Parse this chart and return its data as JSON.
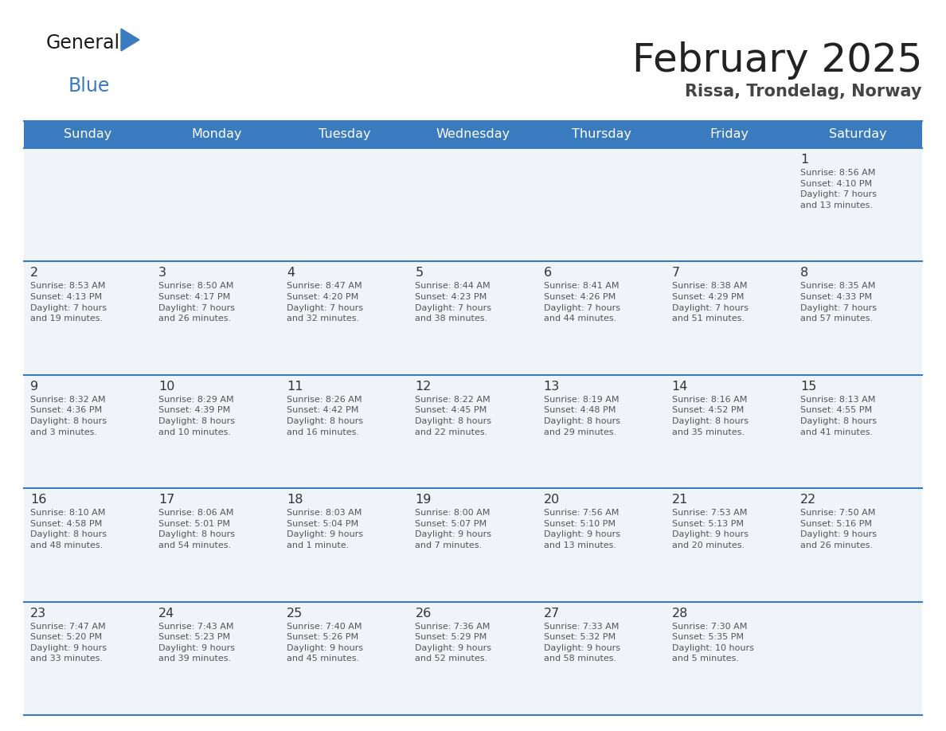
{
  "title": "February 2025",
  "subtitle": "Rissa, Trondelag, Norway",
  "header_bg_color": "#3a7bbf",
  "header_text_color": "#ffffff",
  "cell_bg_color": "#f0f4f8",
  "grid_line_color": "#3a7bbf",
  "day_number_color": "#333333",
  "info_text_color": "#555555",
  "title_color": "#222222",
  "subtitle_color": "#444444",
  "days_of_week": [
    "Sunday",
    "Monday",
    "Tuesday",
    "Wednesday",
    "Thursday",
    "Friday",
    "Saturday"
  ],
  "weeks": [
    [
      {
        "day": null,
        "info": null
      },
      {
        "day": null,
        "info": null
      },
      {
        "day": null,
        "info": null
      },
      {
        "day": null,
        "info": null
      },
      {
        "day": null,
        "info": null
      },
      {
        "day": null,
        "info": null
      },
      {
        "day": "1",
        "info": "Sunrise: 8:56 AM\nSunset: 4:10 PM\nDaylight: 7 hours\nand 13 minutes."
      }
    ],
    [
      {
        "day": "2",
        "info": "Sunrise: 8:53 AM\nSunset: 4:13 PM\nDaylight: 7 hours\nand 19 minutes."
      },
      {
        "day": "3",
        "info": "Sunrise: 8:50 AM\nSunset: 4:17 PM\nDaylight: 7 hours\nand 26 minutes."
      },
      {
        "day": "4",
        "info": "Sunrise: 8:47 AM\nSunset: 4:20 PM\nDaylight: 7 hours\nand 32 minutes."
      },
      {
        "day": "5",
        "info": "Sunrise: 8:44 AM\nSunset: 4:23 PM\nDaylight: 7 hours\nand 38 minutes."
      },
      {
        "day": "6",
        "info": "Sunrise: 8:41 AM\nSunset: 4:26 PM\nDaylight: 7 hours\nand 44 minutes."
      },
      {
        "day": "7",
        "info": "Sunrise: 8:38 AM\nSunset: 4:29 PM\nDaylight: 7 hours\nand 51 minutes."
      },
      {
        "day": "8",
        "info": "Sunrise: 8:35 AM\nSunset: 4:33 PM\nDaylight: 7 hours\nand 57 minutes."
      }
    ],
    [
      {
        "day": "9",
        "info": "Sunrise: 8:32 AM\nSunset: 4:36 PM\nDaylight: 8 hours\nand 3 minutes."
      },
      {
        "day": "10",
        "info": "Sunrise: 8:29 AM\nSunset: 4:39 PM\nDaylight: 8 hours\nand 10 minutes."
      },
      {
        "day": "11",
        "info": "Sunrise: 8:26 AM\nSunset: 4:42 PM\nDaylight: 8 hours\nand 16 minutes."
      },
      {
        "day": "12",
        "info": "Sunrise: 8:22 AM\nSunset: 4:45 PM\nDaylight: 8 hours\nand 22 minutes."
      },
      {
        "day": "13",
        "info": "Sunrise: 8:19 AM\nSunset: 4:48 PM\nDaylight: 8 hours\nand 29 minutes."
      },
      {
        "day": "14",
        "info": "Sunrise: 8:16 AM\nSunset: 4:52 PM\nDaylight: 8 hours\nand 35 minutes."
      },
      {
        "day": "15",
        "info": "Sunrise: 8:13 AM\nSunset: 4:55 PM\nDaylight: 8 hours\nand 41 minutes."
      }
    ],
    [
      {
        "day": "16",
        "info": "Sunrise: 8:10 AM\nSunset: 4:58 PM\nDaylight: 8 hours\nand 48 minutes."
      },
      {
        "day": "17",
        "info": "Sunrise: 8:06 AM\nSunset: 5:01 PM\nDaylight: 8 hours\nand 54 minutes."
      },
      {
        "day": "18",
        "info": "Sunrise: 8:03 AM\nSunset: 5:04 PM\nDaylight: 9 hours\nand 1 minute."
      },
      {
        "day": "19",
        "info": "Sunrise: 8:00 AM\nSunset: 5:07 PM\nDaylight: 9 hours\nand 7 minutes."
      },
      {
        "day": "20",
        "info": "Sunrise: 7:56 AM\nSunset: 5:10 PM\nDaylight: 9 hours\nand 13 minutes."
      },
      {
        "day": "21",
        "info": "Sunrise: 7:53 AM\nSunset: 5:13 PM\nDaylight: 9 hours\nand 20 minutes."
      },
      {
        "day": "22",
        "info": "Sunrise: 7:50 AM\nSunset: 5:16 PM\nDaylight: 9 hours\nand 26 minutes."
      }
    ],
    [
      {
        "day": "23",
        "info": "Sunrise: 7:47 AM\nSunset: 5:20 PM\nDaylight: 9 hours\nand 33 minutes."
      },
      {
        "day": "24",
        "info": "Sunrise: 7:43 AM\nSunset: 5:23 PM\nDaylight: 9 hours\nand 39 minutes."
      },
      {
        "day": "25",
        "info": "Sunrise: 7:40 AM\nSunset: 5:26 PM\nDaylight: 9 hours\nand 45 minutes."
      },
      {
        "day": "26",
        "info": "Sunrise: 7:36 AM\nSunset: 5:29 PM\nDaylight: 9 hours\nand 52 minutes."
      },
      {
        "day": "27",
        "info": "Sunrise: 7:33 AM\nSunset: 5:32 PM\nDaylight: 9 hours\nand 58 minutes."
      },
      {
        "day": "28",
        "info": "Sunrise: 7:30 AM\nSunset: 5:35 PM\nDaylight: 10 hours\nand 5 minutes."
      },
      {
        "day": null,
        "info": null
      }
    ]
  ]
}
